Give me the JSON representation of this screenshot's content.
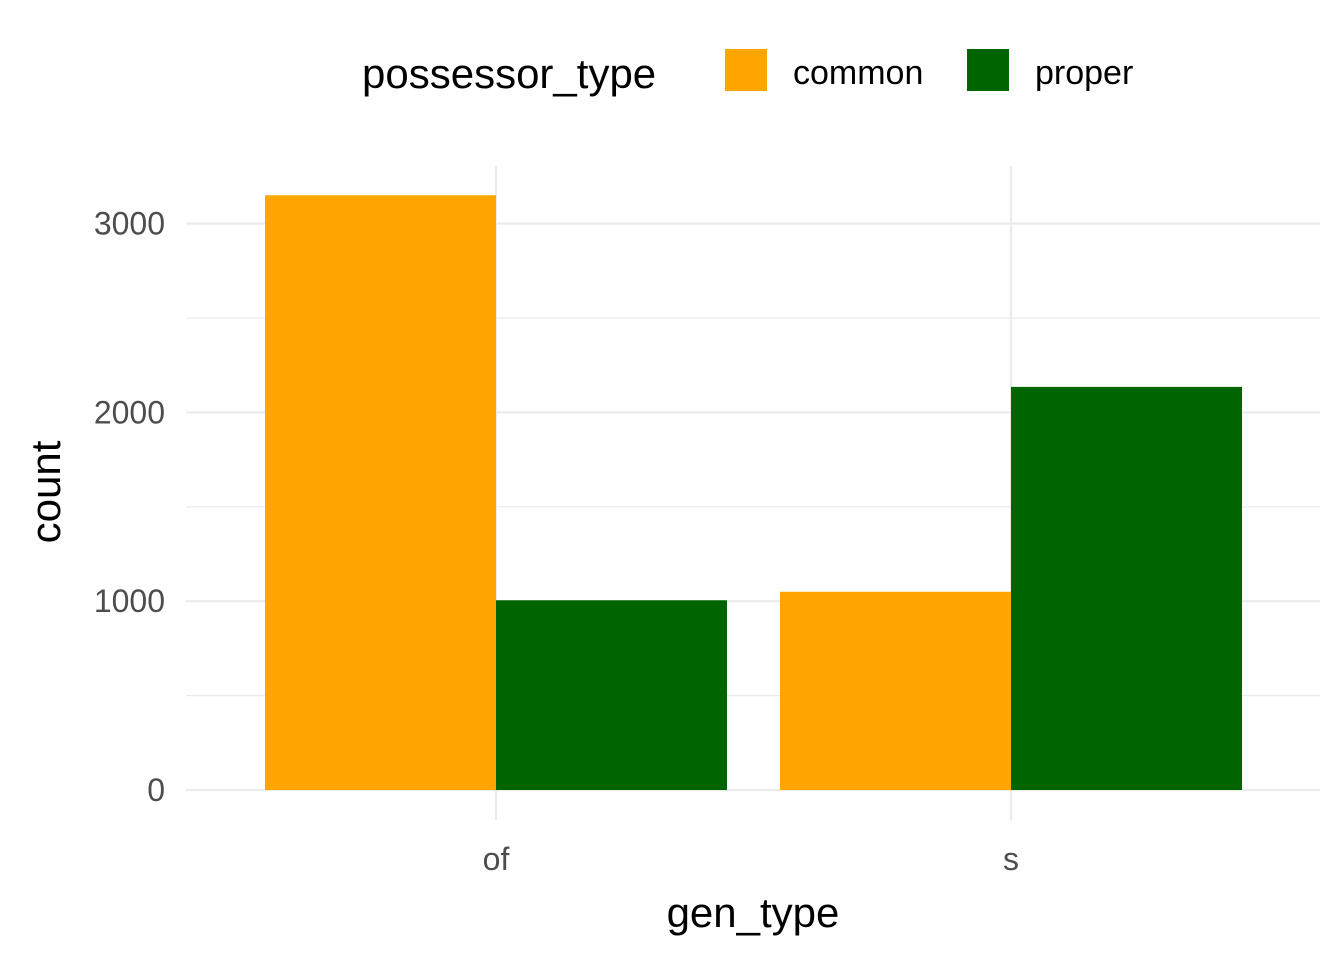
{
  "chart_data": {
    "type": "bar",
    "xlabel": "gen_type",
    "ylabel": "count",
    "categories": [
      "of",
      "s"
    ],
    "ylim": [
      0,
      3300
    ],
    "yticks": [
      0,
      1000,
      2000,
      3000
    ],
    "grid": true,
    "legend": {
      "title": "possessor_type",
      "position": "top"
    },
    "series": [
      {
        "name": "common",
        "color": "#FFA500",
        "values": [
          3150,
          1050
        ]
      },
      {
        "name": "proper",
        "color": "#006400",
        "values": [
          1005,
          2135
        ]
      }
    ]
  }
}
